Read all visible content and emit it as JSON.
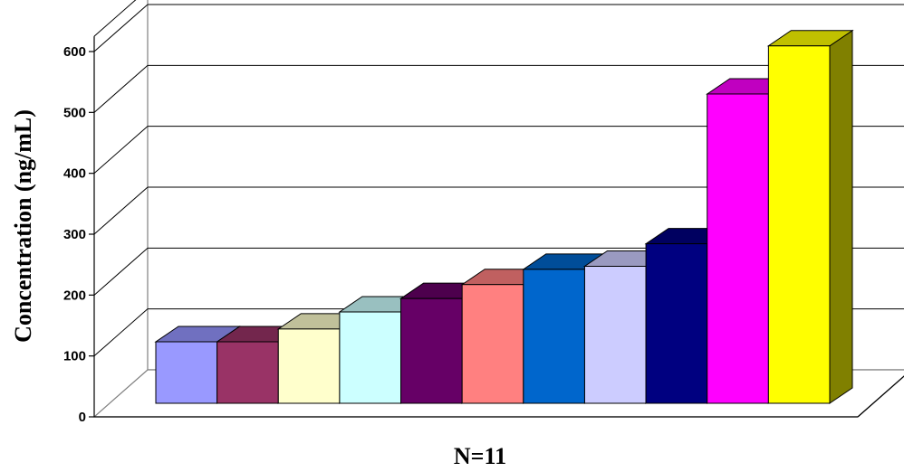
{
  "chart_data": {
    "type": "bar",
    "style": "3d-column",
    "title": "",
    "xlabel": "N=11",
    "ylabel": "Concentration (ng/mL)",
    "ylim": [
      0,
      600
    ],
    "yticks": [
      "0",
      "100",
      "200",
      "300",
      "400",
      "500",
      "600"
    ],
    "grid": true,
    "legend": "none",
    "values": [
      101,
      101,
      122,
      150,
      172,
      195,
      220,
      225,
      262,
      508,
      587
    ],
    "colors": [
      {
        "front": "#9999ff",
        "top": "#7070c0",
        "side": "#5c5ca0"
      },
      {
        "front": "#993366",
        "top": "#73264d",
        "side": "#5a1e3d"
      },
      {
        "front": "#ffffcc",
        "top": "#c0c09a",
        "side": "#a0a080"
      },
      {
        "front": "#ccffff",
        "top": "#99c0c0",
        "side": "#80a0a0"
      },
      {
        "front": "#660066",
        "top": "#4d004d",
        "side": "#3d003d"
      },
      {
        "front": "#ff8080",
        "top": "#c06060",
        "side": "#a05050"
      },
      {
        "front": "#0066cc",
        "top": "#004d99",
        "side": "#003d7a"
      },
      {
        "front": "#ccccff",
        "top": "#9a9ac0",
        "side": "#8080a0"
      },
      {
        "front": "#000080",
        "top": "#000060",
        "side": "#00004d"
      },
      {
        "front": "#ff00ff",
        "top": "#c000c0",
        "side": "#a000a0"
      },
      {
        "front": "#ffff00",
        "top": "#c0c000",
        "side": "#808000"
      }
    ]
  }
}
